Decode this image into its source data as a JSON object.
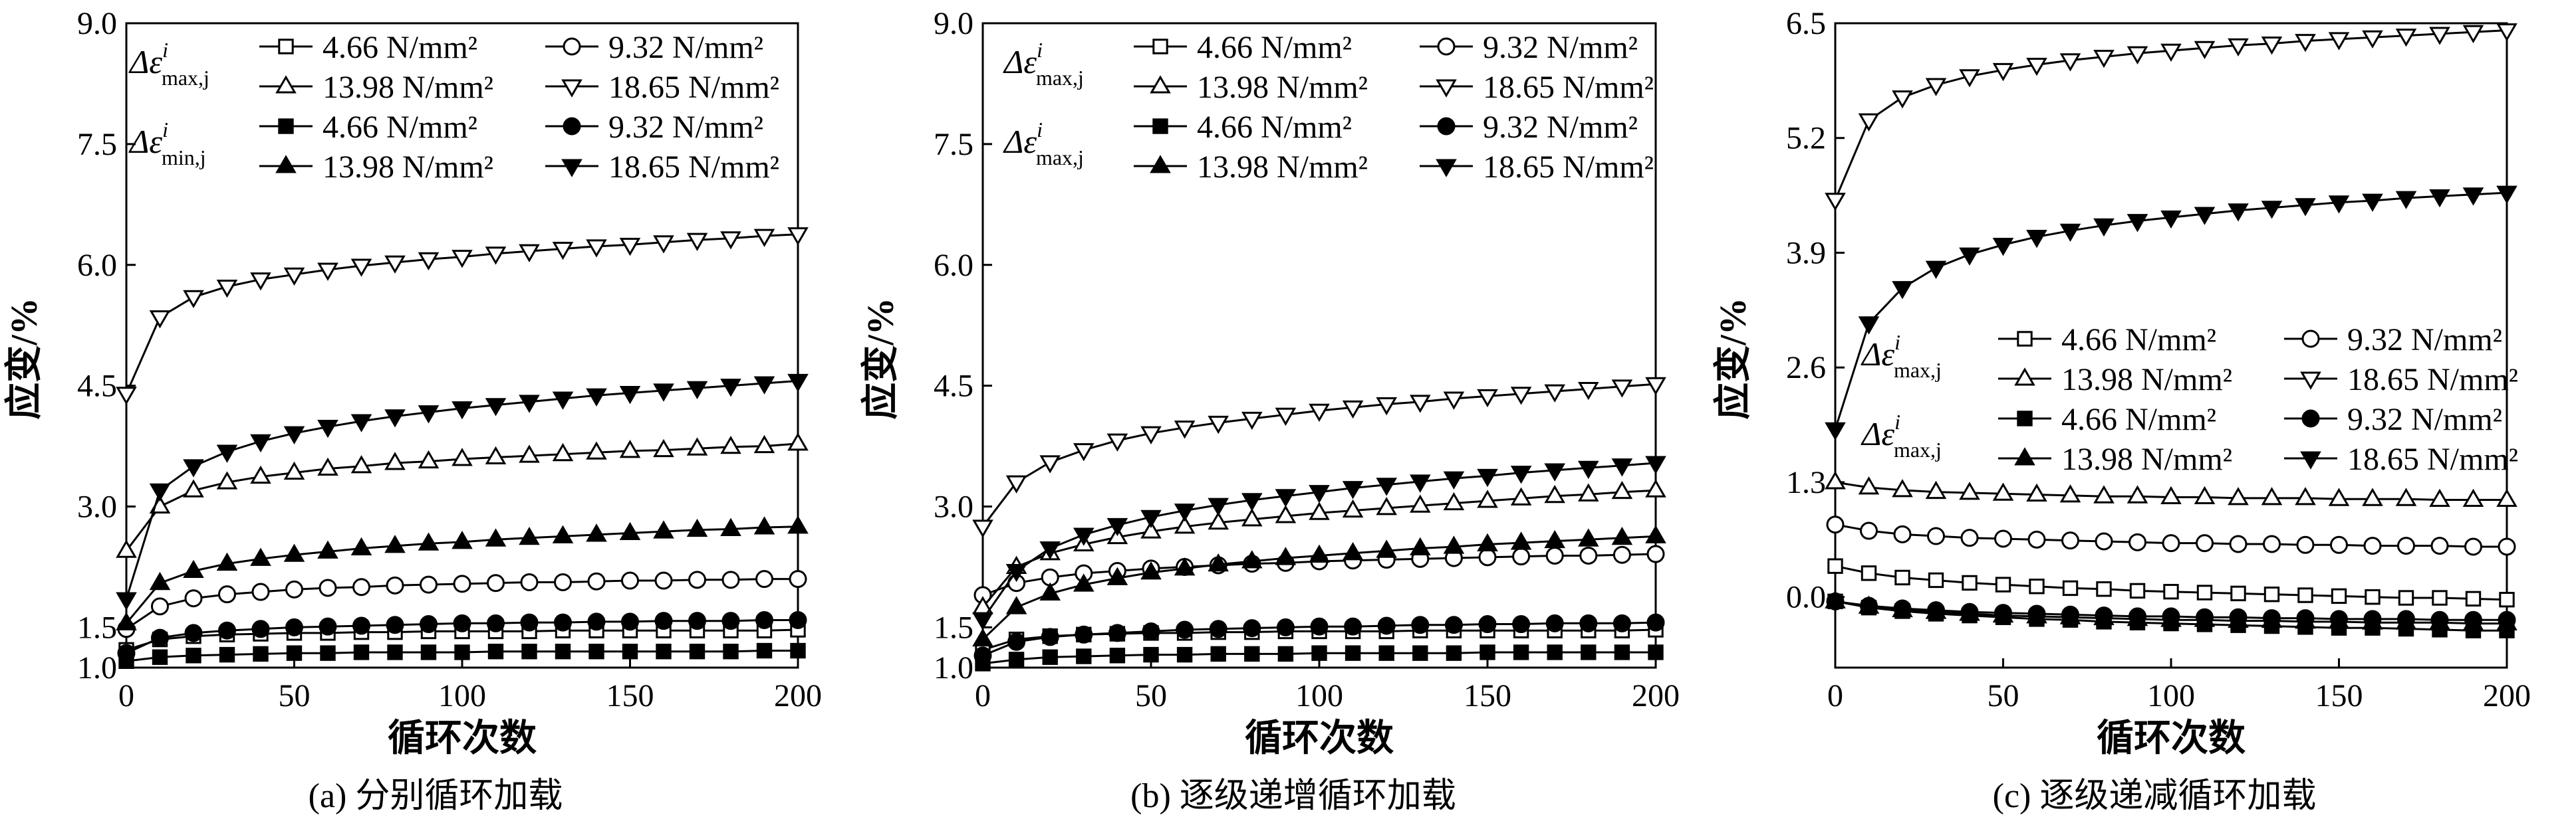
{
  "figure": {
    "panels": [
      {
        "caption": "(a) 分别循环加载"
      },
      {
        "caption": "(b) 逐级递增循环加载"
      },
      {
        "caption": "(c) 逐级递减循环加载"
      }
    ]
  },
  "chart_data": [
    {
      "type": "line",
      "title": "",
      "caption": "(a) 分别循环加载",
      "xlabel": "循环次数",
      "ylabel": "应变/%",
      "xlim": [
        0,
        200
      ],
      "ylim": [
        1.0,
        9.0
      ],
      "xticks": [
        "0",
        "50",
        "100",
        "150",
        "200"
      ],
      "yticks": [
        "1.0",
        "1.5",
        "3.0",
        "4.5",
        "6.0",
        "7.5",
        "9.0"
      ],
      "x": [
        0,
        10,
        20,
        30,
        40,
        50,
        60,
        70,
        80,
        90,
        100,
        110,
        120,
        130,
        140,
        150,
        160,
        170,
        180,
        190,
        200
      ],
      "legend_group_labels": [
        {
          "symbol": "Δε",
          "sup": "i",
          "sub": "max,j"
        },
        {
          "symbol": "Δε",
          "sup": "i",
          "sub": "min,j"
        }
      ],
      "legend_rows": [
        [
          "4.66 N/mm²",
          "9.32 N/mm²"
        ],
        [
          "13.98 N/mm²",
          "18.65 N/mm²"
        ],
        [
          "4.66 N/mm²",
          "9.32 N/mm²"
        ],
        [
          "13.98 N/mm²",
          "18.65 N/mm²"
        ]
      ],
      "series": [
        {
          "name": "Δε max 4.66 N/mm²",
          "marker": "square-open",
          "values": [
            1.22,
            1.35,
            1.39,
            1.41,
            1.42,
            1.43,
            1.43,
            1.44,
            1.44,
            1.45,
            1.45,
            1.45,
            1.45,
            1.46,
            1.46,
            1.46,
            1.46,
            1.46,
            1.46,
            1.46,
            1.47
          ]
        },
        {
          "name": "Δε max 9.32 N/mm²",
          "marker": "circle-open",
          "values": [
            1.48,
            1.76,
            1.86,
            1.91,
            1.94,
            1.97,
            1.99,
            2.0,
            2.02,
            2.03,
            2.04,
            2.05,
            2.06,
            2.06,
            2.07,
            2.08,
            2.08,
            2.09,
            2.09,
            2.1,
            2.1
          ]
        },
        {
          "name": "Δε max 13.98 N/mm²",
          "marker": "triangle-up-open",
          "values": [
            2.45,
            3.0,
            3.2,
            3.3,
            3.37,
            3.42,
            3.47,
            3.5,
            3.54,
            3.56,
            3.59,
            3.61,
            3.63,
            3.65,
            3.67,
            3.69,
            3.7,
            3.72,
            3.74,
            3.75,
            3.78
          ]
        },
        {
          "name": "Δε max 18.65 N/mm²",
          "marker": "triangle-down-open",
          "values": [
            4.4,
            5.35,
            5.6,
            5.73,
            5.82,
            5.88,
            5.94,
            5.99,
            6.03,
            6.07,
            6.1,
            6.14,
            6.17,
            6.2,
            6.23,
            6.25,
            6.28,
            6.31,
            6.33,
            6.36,
            6.38
          ]
        },
        {
          "name": "Δε min 4.66 N/mm²",
          "marker": "square-filled",
          "values": [
            1.08,
            1.13,
            1.15,
            1.16,
            1.17,
            1.18,
            1.18,
            1.19,
            1.19,
            1.19,
            1.19,
            1.2,
            1.2,
            1.2,
            1.2,
            1.2,
            1.2,
            1.2,
            1.2,
            1.21,
            1.21
          ]
        },
        {
          "name": "Δε min 9.32 N/mm²",
          "marker": "circle-filled",
          "values": [
            1.18,
            1.37,
            1.43,
            1.46,
            1.48,
            1.5,
            1.51,
            1.52,
            1.53,
            1.54,
            1.55,
            1.55,
            1.56,
            1.56,
            1.57,
            1.57,
            1.58,
            1.58,
            1.58,
            1.59,
            1.59
          ]
        },
        {
          "name": "Δε min 13.98 N/mm²",
          "marker": "triangle-up-filled",
          "values": [
            1.55,
            2.05,
            2.2,
            2.29,
            2.35,
            2.4,
            2.44,
            2.48,
            2.51,
            2.54,
            2.56,
            2.59,
            2.61,
            2.63,
            2.65,
            2.67,
            2.69,
            2.71,
            2.72,
            2.74,
            2.75
          ]
        },
        {
          "name": "Δε min 18.65 N/mm²",
          "marker": "triangle-down-filled",
          "values": [
            1.85,
            3.2,
            3.5,
            3.68,
            3.81,
            3.91,
            3.99,
            4.06,
            4.12,
            4.17,
            4.22,
            4.26,
            4.3,
            4.34,
            4.38,
            4.41,
            4.44,
            4.47,
            4.5,
            4.53,
            4.56
          ]
        }
      ]
    },
    {
      "type": "line",
      "title": "",
      "caption": "(b) 逐级递增循环加载",
      "xlabel": "循环次数",
      "ylabel": "应变/%",
      "xlim": [
        0,
        200
      ],
      "ylim": [
        1.0,
        9.0
      ],
      "xticks": [
        "0",
        "50",
        "100",
        "150",
        "200"
      ],
      "yticks": [
        "1.0",
        "1.5",
        "3.0",
        "4.5",
        "6.0",
        "7.5",
        "9.0"
      ],
      "x": [
        0,
        10,
        20,
        30,
        40,
        50,
        60,
        70,
        80,
        90,
        100,
        110,
        120,
        130,
        140,
        150,
        160,
        170,
        180,
        190,
        200
      ],
      "legend_group_labels": [
        {
          "symbol": "Δε",
          "sup": "i",
          "sub": "max,j"
        },
        {
          "symbol": "Δε",
          "sup": "i",
          "sub": "max,j"
        }
      ],
      "legend_rows": [
        [
          "4.66 N/mm²",
          "9.32 N/mm²"
        ],
        [
          "13.98 N/mm²",
          "18.65 N/mm²"
        ],
        [
          "4.66 N/mm²",
          "9.32 N/mm²"
        ],
        [
          "13.98 N/mm²",
          "18.65 N/mm²"
        ]
      ],
      "series": [
        {
          "name": "Δε max 4.66 N/mm²",
          "marker": "square-open",
          "values": [
            1.22,
            1.35,
            1.39,
            1.41,
            1.42,
            1.43,
            1.43,
            1.44,
            1.44,
            1.45,
            1.45,
            1.45,
            1.45,
            1.46,
            1.46,
            1.46,
            1.46,
            1.46,
            1.46,
            1.46,
            1.47
          ]
        },
        {
          "name": "Δε max 9.32 N/mm²",
          "marker": "circle-open",
          "values": [
            1.9,
            2.05,
            2.12,
            2.17,
            2.2,
            2.23,
            2.25,
            2.27,
            2.29,
            2.3,
            2.32,
            2.33,
            2.34,
            2.35,
            2.36,
            2.37,
            2.38,
            2.39,
            2.39,
            2.4,
            2.41
          ]
        },
        {
          "name": "Δε max 13.98 N/mm²",
          "marker": "triangle-up-open",
          "values": [
            1.75,
            2.25,
            2.42,
            2.53,
            2.62,
            2.69,
            2.75,
            2.8,
            2.84,
            2.88,
            2.92,
            2.95,
            2.98,
            3.01,
            3.04,
            3.07,
            3.1,
            3.13,
            3.15,
            3.18,
            3.2
          ]
        },
        {
          "name": "Δε max 18.65 N/mm²",
          "marker": "triangle-down-open",
          "values": [
            2.75,
            3.3,
            3.55,
            3.7,
            3.82,
            3.91,
            3.98,
            4.04,
            4.09,
            4.14,
            4.19,
            4.23,
            4.27,
            4.3,
            4.34,
            4.37,
            4.4,
            4.43,
            4.46,
            4.49,
            4.52
          ]
        },
        {
          "name": "Δε max 4.66 N/mm² (lower)",
          "marker": "square-filled",
          "values": [
            1.05,
            1.1,
            1.13,
            1.14,
            1.15,
            1.16,
            1.16,
            1.17,
            1.17,
            1.17,
            1.18,
            1.18,
            1.18,
            1.18,
            1.18,
            1.19,
            1.19,
            1.19,
            1.19,
            1.19,
            1.19
          ]
        },
        {
          "name": "Δε max 9.32 N/mm² (lower)",
          "marker": "circle-filled",
          "values": [
            1.15,
            1.32,
            1.38,
            1.41,
            1.43,
            1.45,
            1.47,
            1.48,
            1.49,
            1.5,
            1.51,
            1.51,
            1.52,
            1.53,
            1.53,
            1.54,
            1.54,
            1.55,
            1.55,
            1.55,
            1.56
          ]
        },
        {
          "name": "Δε max 13.98 N/mm² (lower)",
          "marker": "triangle-up-filled",
          "values": [
            1.35,
            1.75,
            1.92,
            2.03,
            2.11,
            2.18,
            2.23,
            2.28,
            2.32,
            2.36,
            2.39,
            2.42,
            2.45,
            2.48,
            2.5,
            2.53,
            2.55,
            2.57,
            2.59,
            2.61,
            2.63
          ]
        },
        {
          "name": "Δε max 18.65 N/mm² (lower)",
          "marker": "triangle-down-filled",
          "values": [
            1.6,
            2.2,
            2.48,
            2.65,
            2.77,
            2.87,
            2.95,
            3.02,
            3.08,
            3.13,
            3.18,
            3.23,
            3.27,
            3.31,
            3.35,
            3.38,
            3.42,
            3.45,
            3.48,
            3.51,
            3.54
          ]
        }
      ]
    },
    {
      "type": "line",
      "title": "",
      "caption": "(c) 逐级递减循环加载",
      "xlabel": "循环次数",
      "ylabel": "应变/%",
      "xlim": [
        0,
        200
      ],
      "ylim": [
        -0.8,
        6.5
      ],
      "xticks": [
        "0",
        "50",
        "100",
        "150",
        "200"
      ],
      "yticks": [
        "0.0",
        "1.3",
        "2.6",
        "3.9",
        "5.2",
        "6.5"
      ],
      "x": [
        0,
        10,
        20,
        30,
        40,
        50,
        60,
        70,
        80,
        90,
        100,
        110,
        120,
        130,
        140,
        150,
        160,
        170,
        180,
        190,
        200
      ],
      "legend_group_labels": [
        {
          "symbol": "Δε",
          "sup": "i",
          "sub": "max,j"
        },
        {
          "symbol": "Δε",
          "sup": "i",
          "sub": "max,j"
        }
      ],
      "legend_rows": [
        [
          "4.66 N/mm²",
          "9.32 N/mm²"
        ],
        [
          "13.98 N/mm²",
          "18.65 N/mm²"
        ],
        [
          "4.66 N/mm²",
          "9.32 N/mm²"
        ],
        [
          "13.98 N/mm²",
          "18.65 N/mm²"
        ]
      ],
      "series": [
        {
          "name": "Δε max 4.66 N/mm²",
          "marker": "square-open",
          "values": [
            0.35,
            0.27,
            0.22,
            0.19,
            0.16,
            0.14,
            0.12,
            0.1,
            0.09,
            0.07,
            0.06,
            0.05,
            0.04,
            0.03,
            0.02,
            0.01,
            0.0,
            -0.01,
            -0.01,
            -0.02,
            -0.03
          ]
        },
        {
          "name": "Δε max 9.32 N/mm²",
          "marker": "circle-open",
          "values": [
            0.82,
            0.75,
            0.71,
            0.69,
            0.67,
            0.66,
            0.65,
            0.64,
            0.63,
            0.62,
            0.61,
            0.61,
            0.6,
            0.6,
            0.59,
            0.59,
            0.58,
            0.58,
            0.58,
            0.57,
            0.57
          ]
        },
        {
          "name": "Δε max 13.98 N/mm²",
          "marker": "triangle-up-open",
          "values": [
            1.3,
            1.24,
            1.21,
            1.19,
            1.18,
            1.17,
            1.16,
            1.15,
            1.14,
            1.14,
            1.13,
            1.13,
            1.12,
            1.12,
            1.12,
            1.11,
            1.11,
            1.11,
            1.1,
            1.1,
            1.1
          ]
        },
        {
          "name": "Δε max 18.65 N/mm²",
          "marker": "triangle-down-open",
          "values": [
            4.5,
            5.4,
            5.66,
            5.8,
            5.9,
            5.97,
            6.03,
            6.08,
            6.12,
            6.16,
            6.19,
            6.22,
            6.25,
            6.27,
            6.3,
            6.32,
            6.34,
            6.36,
            6.38,
            6.4,
            6.42
          ]
        },
        {
          "name": "Δε max 4.66 N/mm² (lower)",
          "marker": "square-filled",
          "values": [
            -0.05,
            -0.12,
            -0.16,
            -0.19,
            -0.21,
            -0.23,
            -0.25,
            -0.26,
            -0.28,
            -0.29,
            -0.3,
            -0.31,
            -0.32,
            -0.33,
            -0.34,
            -0.35,
            -0.35,
            -0.36,
            -0.37,
            -0.38,
            -0.38
          ]
        },
        {
          "name": "Δε max 9.32 N/mm² (lower)",
          "marker": "circle-filled",
          "values": [
            -0.05,
            -0.1,
            -0.13,
            -0.15,
            -0.17,
            -0.18,
            -0.19,
            -0.2,
            -0.21,
            -0.22,
            -0.22,
            -0.23,
            -0.23,
            -0.24,
            -0.24,
            -0.25,
            -0.25,
            -0.25,
            -0.26,
            -0.26,
            -0.26
          ]
        },
        {
          "name": "Δε max 13.98 N/mm² (lower)",
          "marker": "triangle-up-filled",
          "values": [
            -0.05,
            -0.11,
            -0.15,
            -0.17,
            -0.19,
            -0.21,
            -0.22,
            -0.23,
            -0.24,
            -0.25,
            -0.26,
            -0.26,
            -0.27,
            -0.27,
            -0.28,
            -0.28,
            -0.29,
            -0.29,
            -0.29,
            -0.3,
            -0.3
          ]
        },
        {
          "name": "Δε max 18.65 N/mm² (lower)",
          "marker": "triangle-down-filled",
          "values": [
            1.9,
            3.1,
            3.5,
            3.73,
            3.88,
            3.99,
            4.08,
            4.15,
            4.21,
            4.26,
            4.3,
            4.34,
            4.38,
            4.41,
            4.44,
            4.47,
            4.49,
            4.52,
            4.54,
            4.56,
            4.58
          ]
        }
      ]
    }
  ]
}
